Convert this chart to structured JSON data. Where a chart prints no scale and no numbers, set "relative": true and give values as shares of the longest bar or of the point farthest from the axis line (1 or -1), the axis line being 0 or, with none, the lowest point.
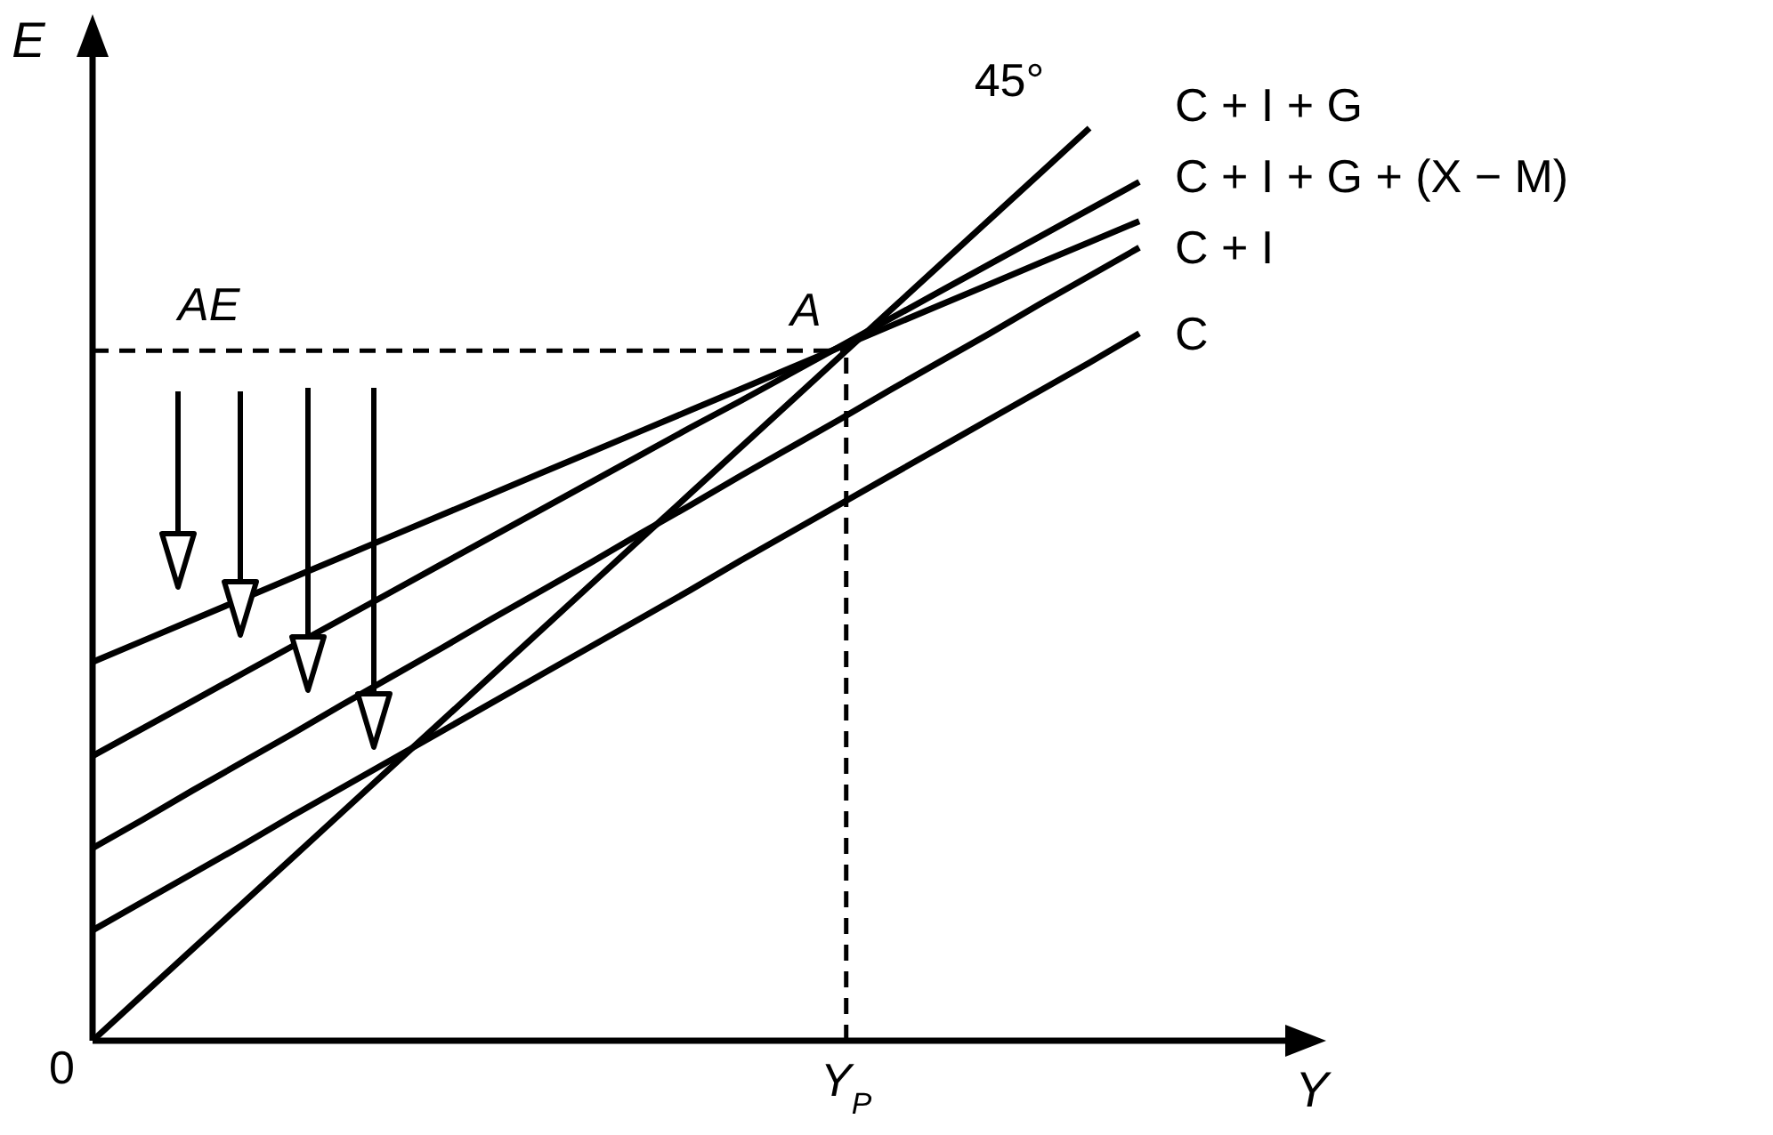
{
  "chart_data": {
    "type": "line",
    "relative": true,
    "xlabel": "Y",
    "ylabel": "E",
    "legend": false,
    "marker": "none",
    "line_style": "solid",
    "grid": false,
    "categories": [
      null,
      null,
      null,
      null,
      null,
      null,
      null,
      null,
      null,
      null,
      null,
      null,
      null,
      null,
      null,
      null,
      null,
      null,
      null,
      null,
      null,
      null
    ],
    "series": [
      {
        "name": "45°",
        "color": "#000000",
        "values": [
          0,
          0.05,
          0.1,
          0.15,
          0.2,
          0.25,
          0.3,
          0.35,
          0.4,
          0.45,
          0.5,
          0.55,
          0.6,
          0.65,
          0.7,
          0.75,
          0.8,
          0.85,
          0.9,
          0.95,
          1,
          null
        ]
      },
      {
        "name": "C + I + G",
        "color": "#000000",
        "values": [
          0.312,
          0.342,
          0.372,
          0.402,
          0.432,
          0.462,
          0.492,
          0.522,
          0.552,
          0.582,
          0.612,
          0.642,
          0.672,
          0.701,
          0.731,
          0.761,
          0.791,
          0.821,
          0.851,
          0.881,
          0.911,
          0.941
        ]
      },
      {
        "name": "C + I + G + (X − M)",
        "color": "#000000",
        "values": [
          0.415,
          0.438,
          0.461,
          0.484,
          0.507,
          0.53,
          0.553,
          0.576,
          0.599,
          0.622,
          0.645,
          0.668,
          0.691,
          0.714,
          0.737,
          0.76,
          0.783,
          0.806,
          0.829,
          0.852,
          0.875,
          0.898
        ]
      },
      {
        "name": "C + I",
        "color": "#000000",
        "values": [
          0.211,
          0.242,
          0.274,
          0.305,
          0.336,
          0.368,
          0.399,
          0.43,
          0.462,
          0.493,
          0.524,
          0.556,
          0.587,
          0.619,
          0.65,
          0.681,
          0.713,
          0.744,
          0.775,
          0.807,
          0.838,
          0.869
        ]
      },
      {
        "name": "C",
        "color": "#000000",
        "values": [
          0.121,
          0.152,
          0.183,
          0.214,
          0.246,
          0.277,
          0.308,
          0.339,
          0.37,
          0.401,
          0.432,
          0.463,
          0.494,
          0.526,
          0.557,
          0.588,
          0.619,
          0.65,
          0.681,
          0.712,
          0.743,
          0.775
        ]
      }
    ],
    "ref_lines": [
      {
        "axis": "y",
        "value": 0.756,
        "line_style": "dashed"
      }
    ],
    "annotations": [
      {
        "text": "A",
        "y": 0.756
      },
      "0",
      "AE",
      "Y$_{P}$"
    ]
  }
}
